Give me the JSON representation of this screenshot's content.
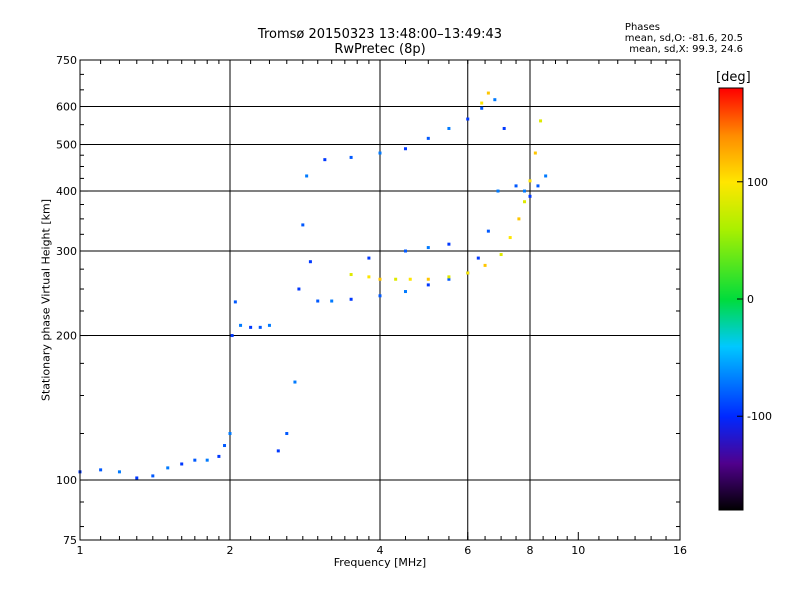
{
  "title": "Tromsø 20150323 13:48:00–13:49:43",
  "subtitle": "RwPretec (8p)",
  "phase_stats": {
    "heading": "Phases",
    "o_line": "mean, sd,O: -81.6, 20.5",
    "x_line": "mean, sd,X:  99.3, 24.6"
  },
  "chart_data": {
    "type": "scatter",
    "title": "Tromsø 20150323 13:48:00–13:49:43",
    "subtitle": "RwPretec (8p)",
    "xlabel": "Frequency [MHz]",
    "ylabel": "Stationary phase Virtual Height [km]",
    "x_scale": "log",
    "y_scale": "log",
    "xlim": [
      1,
      16
    ],
    "ylim": [
      75,
      750
    ],
    "x_ticks": [
      1,
      2,
      4,
      6,
      8,
      10,
      16
    ],
    "y_ticks": [
      75,
      100,
      200,
      300,
      400,
      500,
      600,
      750
    ],
    "x_gridlines": [
      2,
      4,
      6,
      8
    ],
    "y_gridlines": [
      100,
      200,
      300,
      400,
      500,
      600
    ],
    "grid": true,
    "colorbar": {
      "label": "[deg]",
      "range": [
        -180,
        180
      ],
      "ticks": [
        -100,
        0,
        100
      ],
      "colormap": "black-purple-blue-cyan-green-yellow-orange-red"
    },
    "series": [
      {
        "mode": "O",
        "description_from_figure": "blue traces",
        "phase_deg_mean": -81.6,
        "phase_deg_sd": 20.5,
        "points": [
          [
            1.0,
            104
          ],
          [
            1.1,
            105
          ],
          [
            1.2,
            104
          ],
          [
            1.3,
            101
          ],
          [
            1.4,
            102
          ],
          [
            1.5,
            106
          ],
          [
            1.6,
            108
          ],
          [
            1.7,
            110
          ],
          [
            1.8,
            110
          ],
          [
            1.9,
            112
          ],
          [
            1.95,
            118
          ],
          [
            2.0,
            125
          ],
          [
            2.02,
            200
          ],
          [
            2.05,
            235
          ],
          [
            2.1,
            210
          ],
          [
            2.2,
            208
          ],
          [
            2.3,
            208
          ],
          [
            2.4,
            210
          ],
          [
            2.5,
            115
          ],
          [
            2.6,
            125
          ],
          [
            2.7,
            160
          ],
          [
            2.75,
            250
          ],
          [
            2.8,
            340
          ],
          [
            2.85,
            430
          ],
          [
            2.9,
            285
          ],
          [
            3.0,
            236
          ],
          [
            3.2,
            236
          ],
          [
            3.5,
            238
          ],
          [
            4.0,
            242
          ],
          [
            4.5,
            247
          ],
          [
            5.0,
            255
          ],
          [
            5.5,
            262
          ],
          [
            6.0,
            270
          ],
          [
            6.3,
            290
          ],
          [
            6.6,
            330
          ],
          [
            6.9,
            400
          ],
          [
            7.1,
            540
          ],
          [
            7.5,
            410
          ],
          [
            7.8,
            400
          ],
          [
            8.0,
            390
          ],
          [
            8.3,
            410
          ],
          [
            8.6,
            430
          ],
          [
            3.1,
            465
          ],
          [
            3.5,
            470
          ],
          [
            4.0,
            480
          ],
          [
            4.5,
            490
          ],
          [
            5.0,
            515
          ],
          [
            5.5,
            540
          ],
          [
            6.0,
            565
          ],
          [
            6.4,
            595
          ],
          [
            6.8,
            620
          ],
          [
            3.8,
            290
          ],
          [
            4.5,
            300
          ],
          [
            5.0,
            305
          ],
          [
            5.5,
            310
          ]
        ]
      },
      {
        "mode": "X",
        "description_from_figure": "yellow/orange traces",
        "phase_deg_mean": 99.3,
        "phase_deg_sd": 24.6,
        "points": [
          [
            3.5,
            268
          ],
          [
            3.8,
            265
          ],
          [
            4.0,
            262
          ],
          [
            4.3,
            262
          ],
          [
            4.6,
            262
          ],
          [
            5.0,
            262
          ],
          [
            5.5,
            265
          ],
          [
            6.0,
            270
          ],
          [
            6.5,
            280
          ],
          [
            7.0,
            295
          ],
          [
            7.3,
            320
          ],
          [
            7.6,
            350
          ],
          [
            7.8,
            380
          ],
          [
            8.0,
            420
          ],
          [
            8.2,
            480
          ],
          [
            8.4,
            560
          ],
          [
            6.4,
            610
          ],
          [
            6.6,
            640
          ]
        ]
      }
    ]
  }
}
